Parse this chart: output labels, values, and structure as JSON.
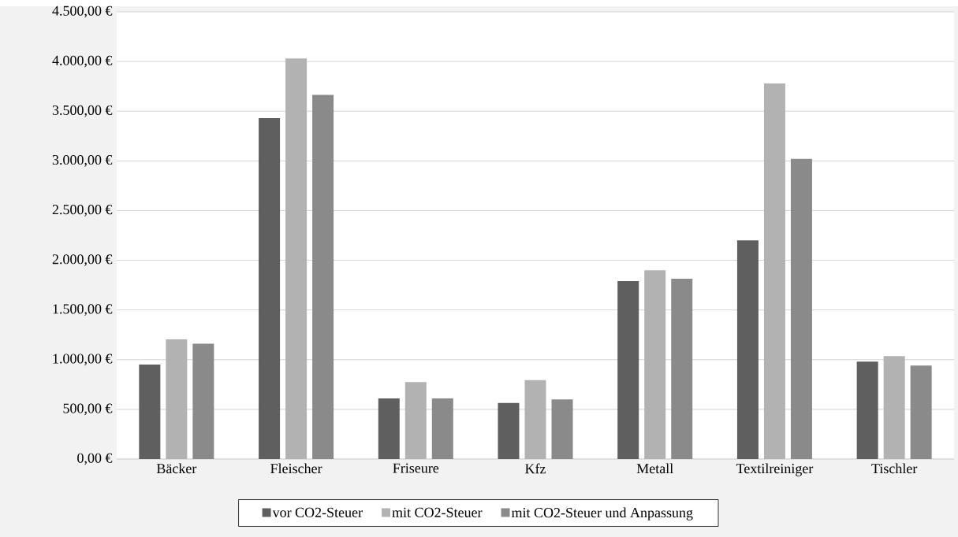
{
  "chart_data": {
    "type": "bar",
    "categories": [
      "Bäcker",
      "Fleischer",
      "Friseure",
      "Kfz",
      "Metall",
      "Textilreiniger",
      "Tischler"
    ],
    "series": [
      {
        "name": "vor CO2-Steuer",
        "color": "#5f5f5f",
        "values": [
          950,
          3430,
          610,
          565,
          1790,
          2200,
          980
        ]
      },
      {
        "name": "mit CO2-Steuer",
        "color": "#b2b2b2",
        "values": [
          1205,
          4030,
          775,
          795,
          1900,
          3780,
          1035
        ]
      },
      {
        "name": "mit CO2-Steuer und Anpassung",
        "color": "#8a8a8a",
        "values": [
          1160,
          3665,
          610,
          600,
          1815,
          3020,
          940
        ]
      }
    ],
    "ylim": [
      0,
      4500
    ],
    "yticks": [
      {
        "value": 0,
        "label": "0,00 €"
      },
      {
        "value": 500,
        "label": "500,00 €"
      },
      {
        "value": 1000,
        "label": "1.000,00 €"
      },
      {
        "value": 1500,
        "label": "1.500,00 €"
      },
      {
        "value": 2000,
        "label": "2.000,00 €"
      },
      {
        "value": 2500,
        "label": "2.500,00 €"
      },
      {
        "value": 3000,
        "label": "3.000,00 €"
      },
      {
        "value": 3500,
        "label": "3.500,00 €"
      },
      {
        "value": 4000,
        "label": "4.000,00 €"
      },
      {
        "value": 4500,
        "label": "4.500,00 €"
      }
    ],
    "grid": "y",
    "legend": "bottom"
  }
}
